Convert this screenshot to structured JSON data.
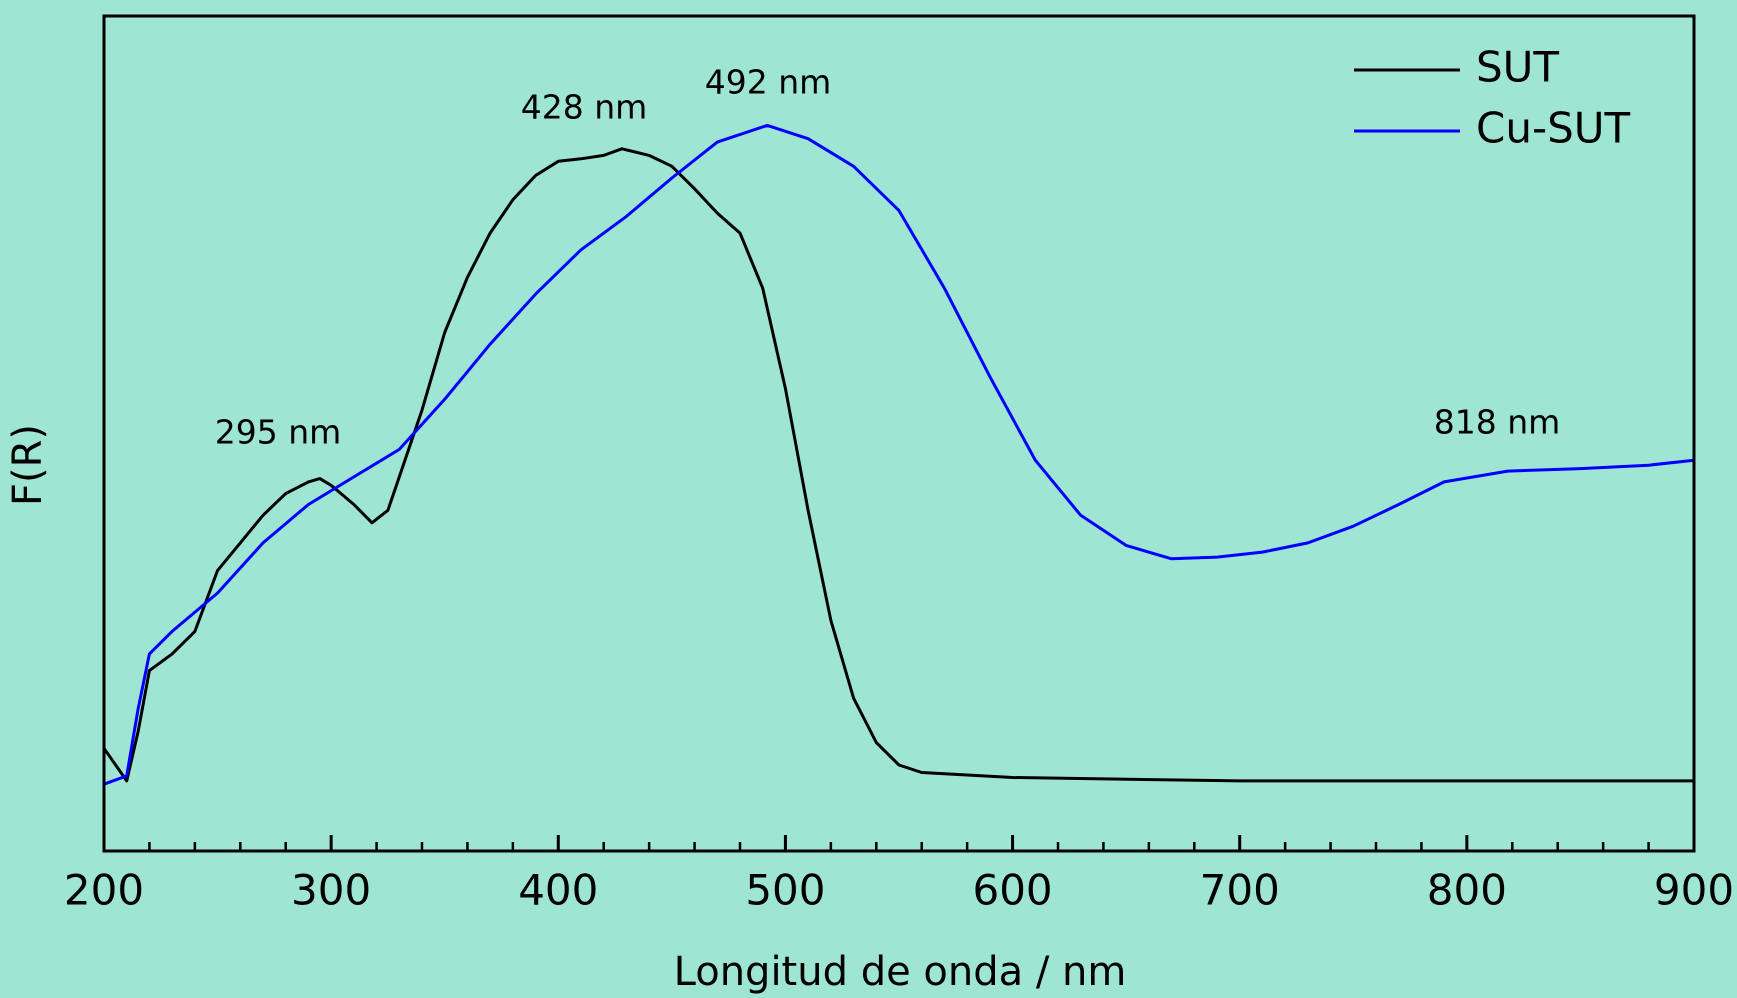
{
  "chart_data": {
    "type": "line",
    "xlabel": "Longitud de onda / nm",
    "ylabel": "F(R)",
    "xlim": [
      200,
      900
    ],
    "ylim": [
      0,
      1
    ],
    "xticks": [
      200,
      300,
      400,
      500,
      600,
      700,
      800,
      900
    ],
    "xminorticks": [
      220,
      240,
      260,
      280,
      320,
      340,
      360,
      380,
      420,
      440,
      460,
      480,
      520,
      540,
      560,
      580,
      620,
      640,
      660,
      680,
      720,
      740,
      760,
      780,
      820,
      840,
      860,
      880
    ],
    "legend": "upper right",
    "annotations": [
      "295 nm",
      "428 nm",
      "492 nm",
      "818 nm"
    ],
    "series": [
      {
        "name": "SUT",
        "color": "#000000",
        "x": [
          200,
          210,
          215,
          220,
          230,
          240,
          250,
          260,
          270,
          280,
          290,
          295,
          300,
          310,
          318,
          325,
          330,
          340,
          350,
          360,
          370,
          380,
          390,
          400,
          410,
          420,
          428,
          440,
          450,
          460,
          470,
          480,
          490,
          500,
          510,
          520,
          530,
          540,
          550,
          560,
          600,
          700,
          900
        ],
        "values": [
          0.123,
          0.084,
          0.143,
          0.216,
          0.236,
          0.263,
          0.336,
          0.369,
          0.402,
          0.428,
          0.442,
          0.446,
          0.438,
          0.415,
          0.393,
          0.408,
          0.448,
          0.528,
          0.621,
          0.687,
          0.74,
          0.78,
          0.809,
          0.826,
          0.829,
          0.833,
          0.841,
          0.833,
          0.82,
          0.793,
          0.764,
          0.74,
          0.674,
          0.554,
          0.408,
          0.276,
          0.183,
          0.13,
          0.103,
          0.094,
          0.088,
          0.084,
          0.084
        ]
      },
      {
        "name": "Cu-SUT",
        "color": "#0000ff",
        "x": [
          200,
          210,
          215,
          220,
          230,
          250,
          270,
          290,
          310,
          330,
          350,
          370,
          390,
          410,
          430,
          450,
          470,
          492,
          510,
          530,
          550,
          570,
          590,
          610,
          630,
          650,
          670,
          690,
          710,
          730,
          750,
          770,
          790,
          818,
          850,
          880,
          900
        ],
        "values": [
          0.08,
          0.09,
          0.17,
          0.236,
          0.263,
          0.309,
          0.369,
          0.415,
          0.448,
          0.481,
          0.541,
          0.607,
          0.667,
          0.72,
          0.76,
          0.806,
          0.849,
          0.869,
          0.853,
          0.82,
          0.767,
          0.674,
          0.568,
          0.468,
          0.402,
          0.366,
          0.35,
          0.352,
          0.358,
          0.369,
          0.389,
          0.415,
          0.442,
          0.455,
          0.458,
          0.462,
          0.468
        ]
      }
    ]
  }
}
